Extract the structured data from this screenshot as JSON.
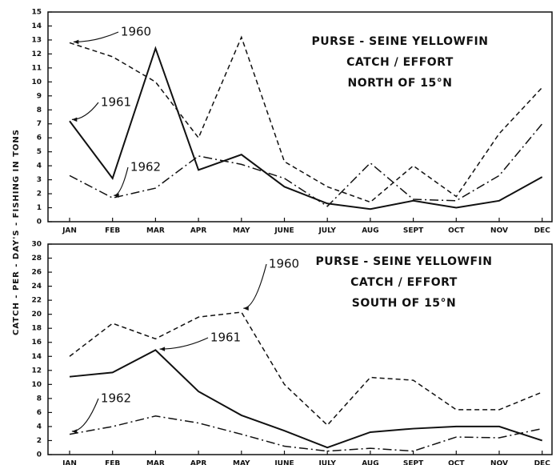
{
  "ylabel": "CATCH - PER - DAY'S - FISHING IN TONS",
  "chart_data": [
    {
      "type": "line",
      "title": [
        "PURSE - SEINE  YELLOWFIN",
        "CATCH / EFFORT",
        "NORTH OF 15°N"
      ],
      "categories": [
        "JAN",
        "FEB",
        "MAR",
        "APR",
        "MAY",
        "JUNE",
        "JULY",
        "AUG",
        "SEPT",
        "OCT",
        "NOV",
        "DEC"
      ],
      "ylim": [
        0,
        15
      ],
      "yticks": [
        0,
        1,
        2,
        3,
        4,
        5,
        6,
        7,
        8,
        9,
        10,
        11,
        12,
        13,
        14,
        15
      ],
      "series": [
        {
          "name": "1960",
          "color": "#111111",
          "style": "dashed",
          "values": [
            12.8,
            11.8,
            10,
            6,
            13.2,
            4.3,
            2.5,
            1.4,
            4.0,
            1.8,
            6.3,
            9.6
          ]
        },
        {
          "name": "1961",
          "color": "#111111",
          "style": "solid",
          "values": [
            7.2,
            3.1,
            12.4,
            3.7,
            4.8,
            2.5,
            1.3,
            0.9,
            1.5,
            1.0,
            1.5,
            3.2
          ]
        },
        {
          "name": "1962",
          "color": "#111111",
          "style": "dashdot",
          "values": [
            3.3,
            1.7,
            2.4,
            4.7,
            4.1,
            3.1,
            1.1,
            4.2,
            1.6,
            1.5,
            3.3,
            7.0
          ]
        }
      ]
    },
    {
      "type": "line",
      "title": [
        "PURSE - SEINE  YELLOWFIN",
        "CATCH / EFFORT",
        "SOUTH OF 15°N"
      ],
      "categories": [
        "JAN",
        "FEB",
        "MAR",
        "APR",
        "MAY",
        "JUNE",
        "JULY",
        "AUG",
        "SEPT",
        "OCT",
        "NOV",
        "DEC"
      ],
      "ylim": [
        0,
        30
      ],
      "yticks": [
        0,
        2,
        4,
        6,
        8,
        10,
        12,
        14,
        16,
        18,
        20,
        22,
        24,
        26,
        28,
        30
      ],
      "series": [
        {
          "name": "1960",
          "color": "#111111",
          "style": "dashed",
          "values": [
            14,
            18.7,
            16.5,
            19.6,
            20.3,
            10,
            4.2,
            11,
            10.6,
            6.4,
            6.4,
            8.9
          ]
        },
        {
          "name": "1961",
          "color": "#111111",
          "style": "solid",
          "values": [
            11.1,
            11.7,
            14.9,
            9,
            5.6,
            3.4,
            1.0,
            3.2,
            3.7,
            4.0,
            4.0,
            2.0
          ]
        },
        {
          "name": "1962",
          "color": "#111111",
          "style": "dashdot",
          "values": [
            2.9,
            4.0,
            5.5,
            4.5,
            2.9,
            1.2,
            0.5,
            0.9,
            0.5,
            2.5,
            2.4,
            3.7
          ]
        }
      ]
    }
  ]
}
